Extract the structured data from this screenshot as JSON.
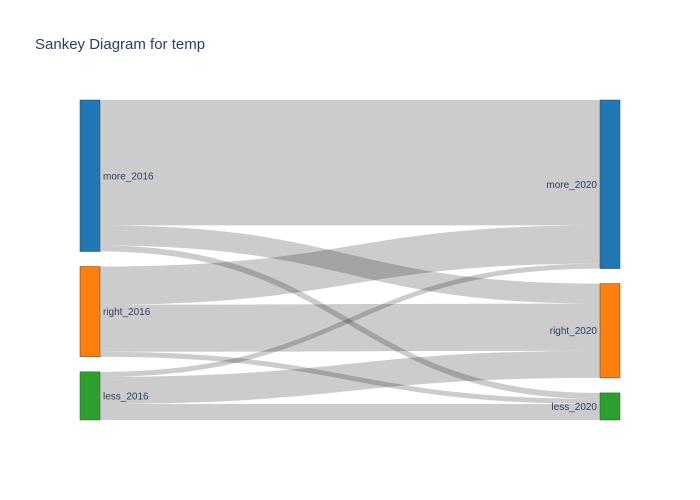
{
  "chart_data": {
    "type": "sankey",
    "title": "Sankey Diagram for temp",
    "link_color": "#000000",
    "link_opacity": 0.2,
    "nodes": [
      {
        "id": "more_2016",
        "label": "more_2016",
        "color": "#1f77b4",
        "column": 0
      },
      {
        "id": "right_2016",
        "label": "right_2016",
        "color": "#ff7f0e",
        "column": 0
      },
      {
        "id": "less_2016",
        "label": "less_2016",
        "color": "#2ca02c",
        "column": 0
      },
      {
        "id": "more_2020",
        "label": "more_2020",
        "color": "#1f77b4",
        "column": 1
      },
      {
        "id": "right_2020",
        "label": "right_2020",
        "color": "#ff7f0e",
        "column": 1
      },
      {
        "id": "less_2020",
        "label": "less_2020",
        "color": "#2ca02c",
        "column": 1
      }
    ],
    "links": [
      {
        "source": "more_2016",
        "target": "more_2020",
        "value": 125
      },
      {
        "source": "more_2016",
        "target": "right_2020",
        "value": 20
      },
      {
        "source": "more_2016",
        "target": "less_2020",
        "value": 6
      },
      {
        "source": "right_2016",
        "target": "more_2020",
        "value": 38
      },
      {
        "source": "right_2016",
        "target": "right_2020",
        "value": 47
      },
      {
        "source": "right_2016",
        "target": "less_2020",
        "value": 5
      },
      {
        "source": "less_2016",
        "target": "more_2020",
        "value": 5
      },
      {
        "source": "less_2016",
        "target": "right_2020",
        "value": 27
      },
      {
        "source": "less_2016",
        "target": "less_2020",
        "value": 16
      }
    ]
  }
}
